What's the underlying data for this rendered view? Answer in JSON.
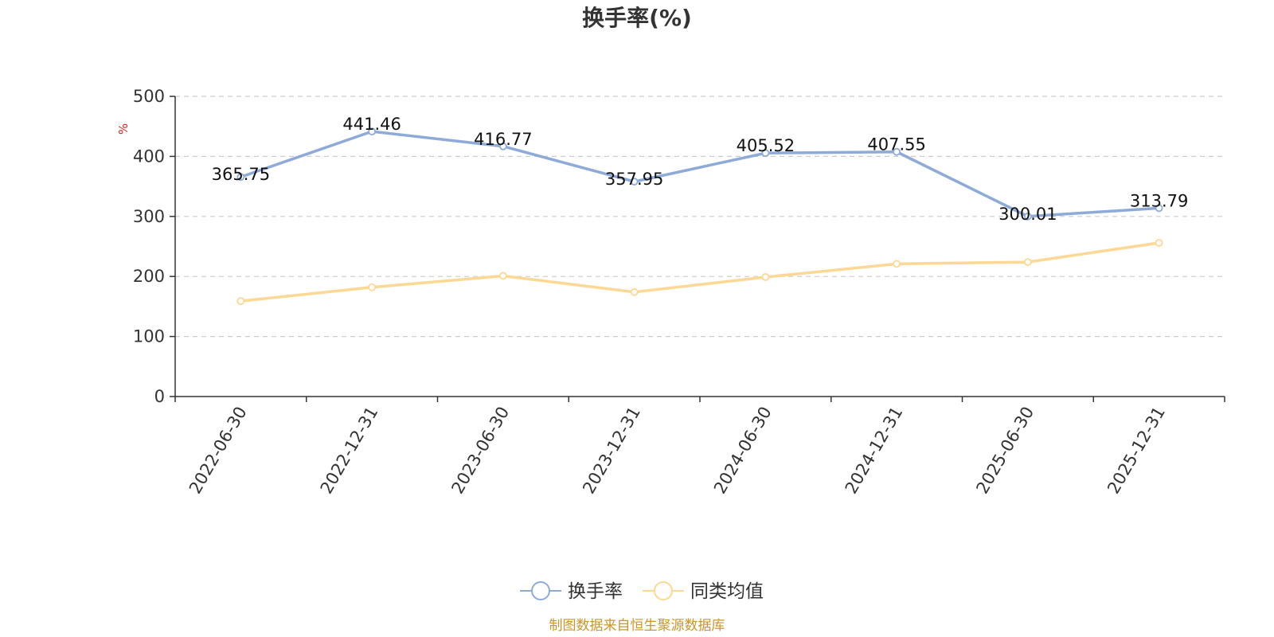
{
  "chart_data": {
    "type": "line",
    "title": "换手率(%)",
    "ylabel": "%",
    "ylim": [
      0,
      500
    ],
    "yticks": [
      0,
      100,
      200,
      300,
      400,
      500
    ],
    "grid": true,
    "legend_position": "bottom",
    "categories": [
      "2022-06-30",
      "2022-12-31",
      "2023-06-30",
      "2023-12-31",
      "2024-06-30",
      "2024-12-31",
      "2025-06-30",
      "2025-12-31"
    ],
    "series": [
      {
        "name": "换手率",
        "color": "#8eaad8",
        "values": [
          365.75,
          441.46,
          416.77,
          357.95,
          405.52,
          407.55,
          300.01,
          313.79
        ],
        "labels": [
          "365.75",
          "441.46",
          "416.77",
          "357.95",
          "405.52",
          "407.55",
          "300.01",
          "313.79"
        ],
        "show_labels": true
      },
      {
        "name": "同类均值",
        "color": "#fcd894",
        "values": [
          159,
          182,
          201,
          174,
          199,
          221,
          224,
          256
        ],
        "show_labels": false
      }
    ],
    "source": "制图数据来自恒生聚源数据库"
  }
}
